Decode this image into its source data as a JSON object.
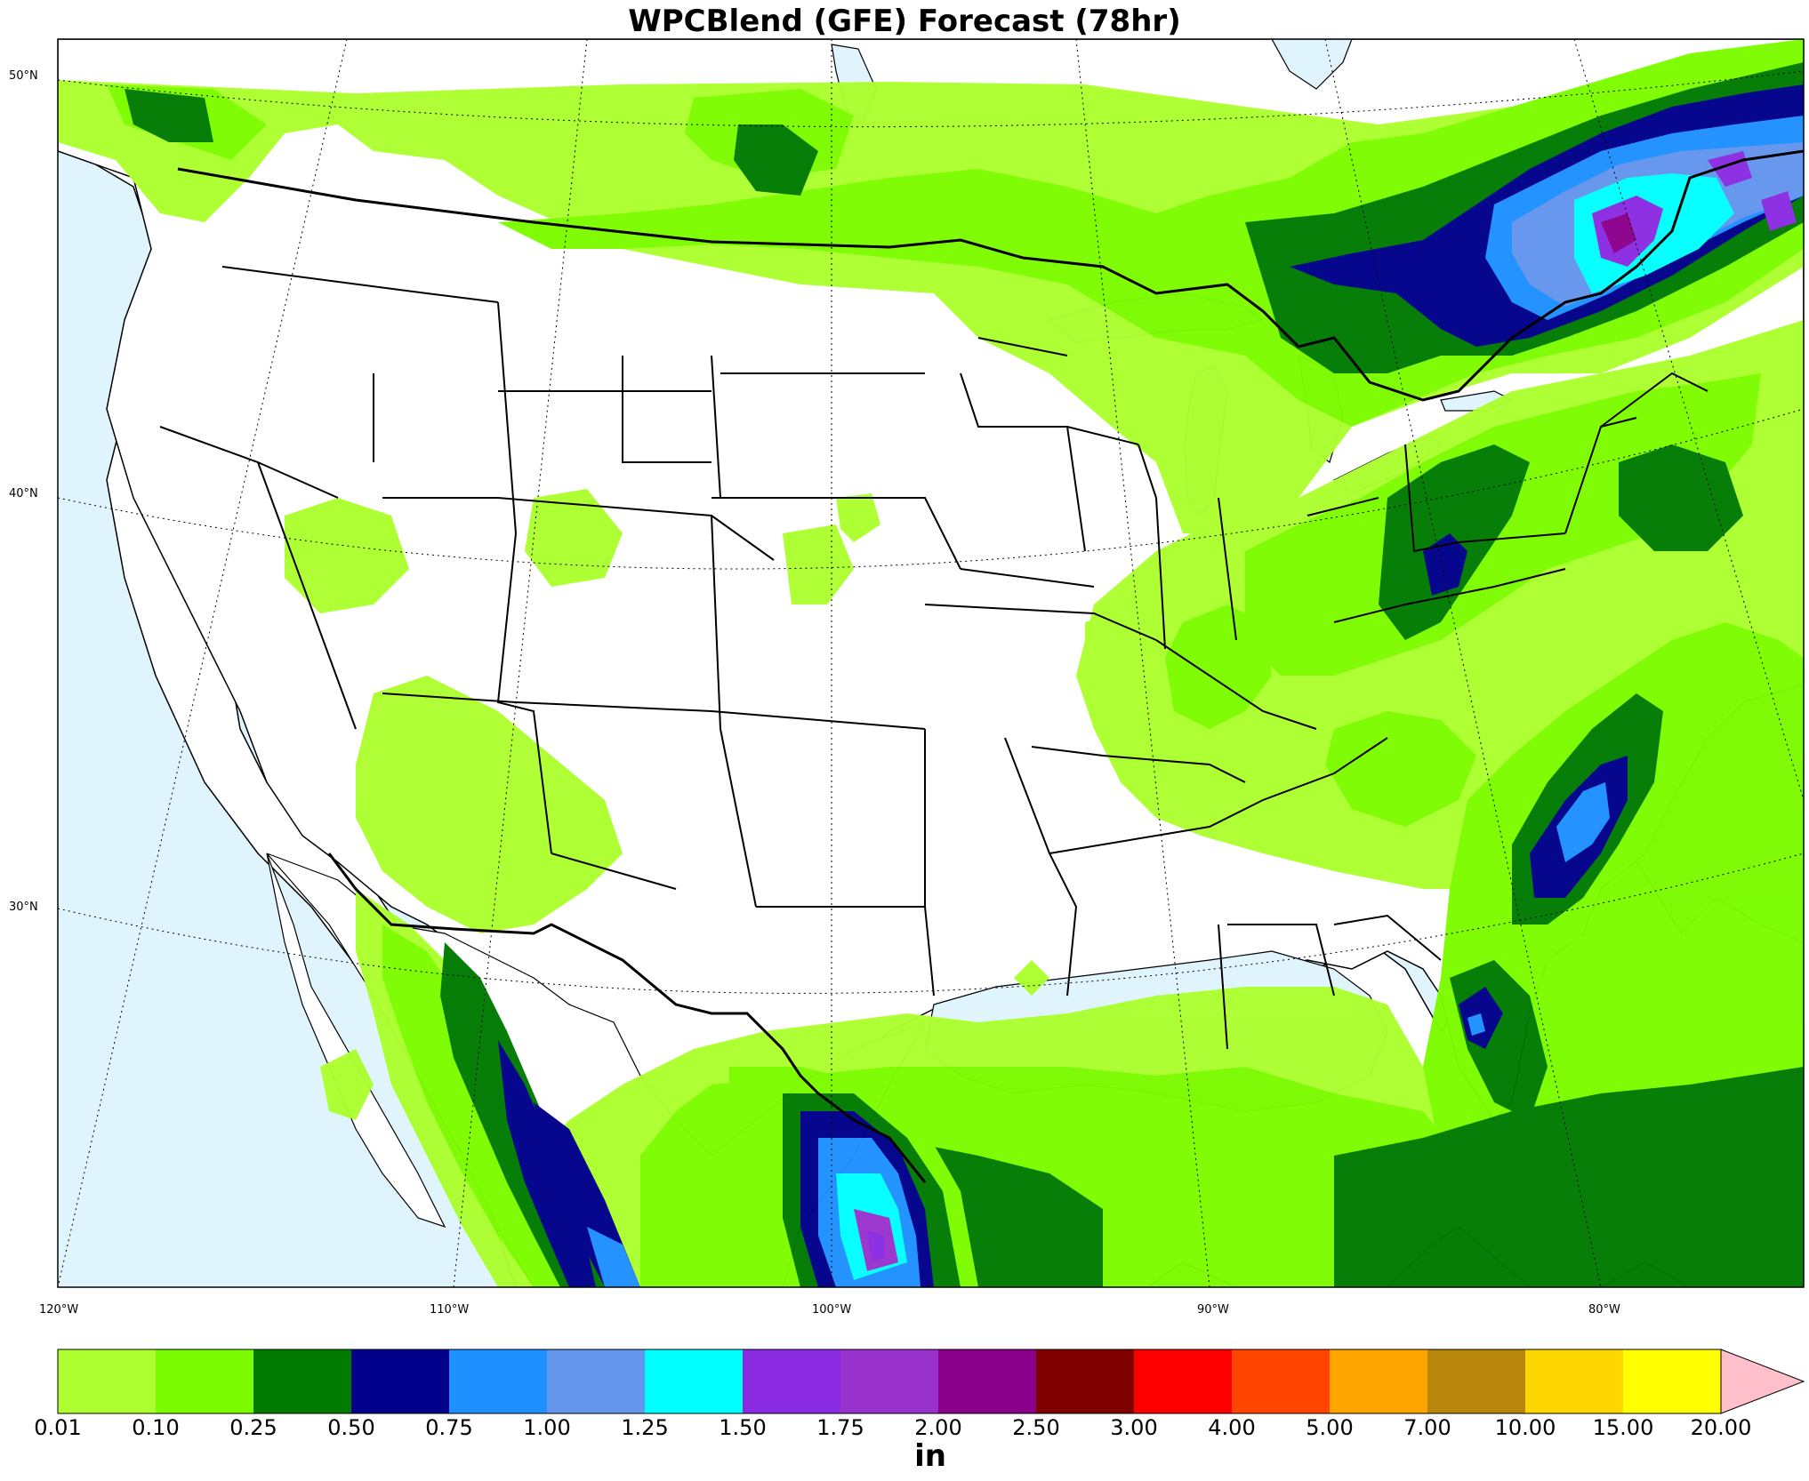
{
  "title": "WPCBlend (GFE) Forecast (78hr)",
  "lat_labels": [
    "50°N",
    "40°N",
    "30°N"
  ],
  "lon_labels": [
    "120°W",
    "110°W",
    "100°W",
    "90°W",
    "80°W"
  ],
  "colorbar": {
    "unit": "in",
    "levels": [
      "0.01",
      "0.10",
      "0.25",
      "0.50",
      "0.75",
      "1.00",
      "1.25",
      "1.50",
      "1.75",
      "2.00",
      "2.50",
      "3.00",
      "4.00",
      "5.00",
      "7.00",
      "10.00",
      "15.00",
      "20.00"
    ],
    "colors": [
      "#adff2f",
      "#7cfc00",
      "#007a00",
      "#00008b",
      "#1e90ff",
      "#6495ed",
      "#00ffff",
      "#8a2be2",
      "#9932cc",
      "#8b008b",
      "#800000",
      "#ff0000",
      "#ff4500",
      "#ffa500",
      "#b8860b",
      "#ffd700",
      "#ffff00"
    ],
    "extend_color": "#ffc0cb"
  },
  "colors": {
    "ocean": "#dff4fc",
    "land": "#ffffff",
    "border": "#000000"
  }
}
